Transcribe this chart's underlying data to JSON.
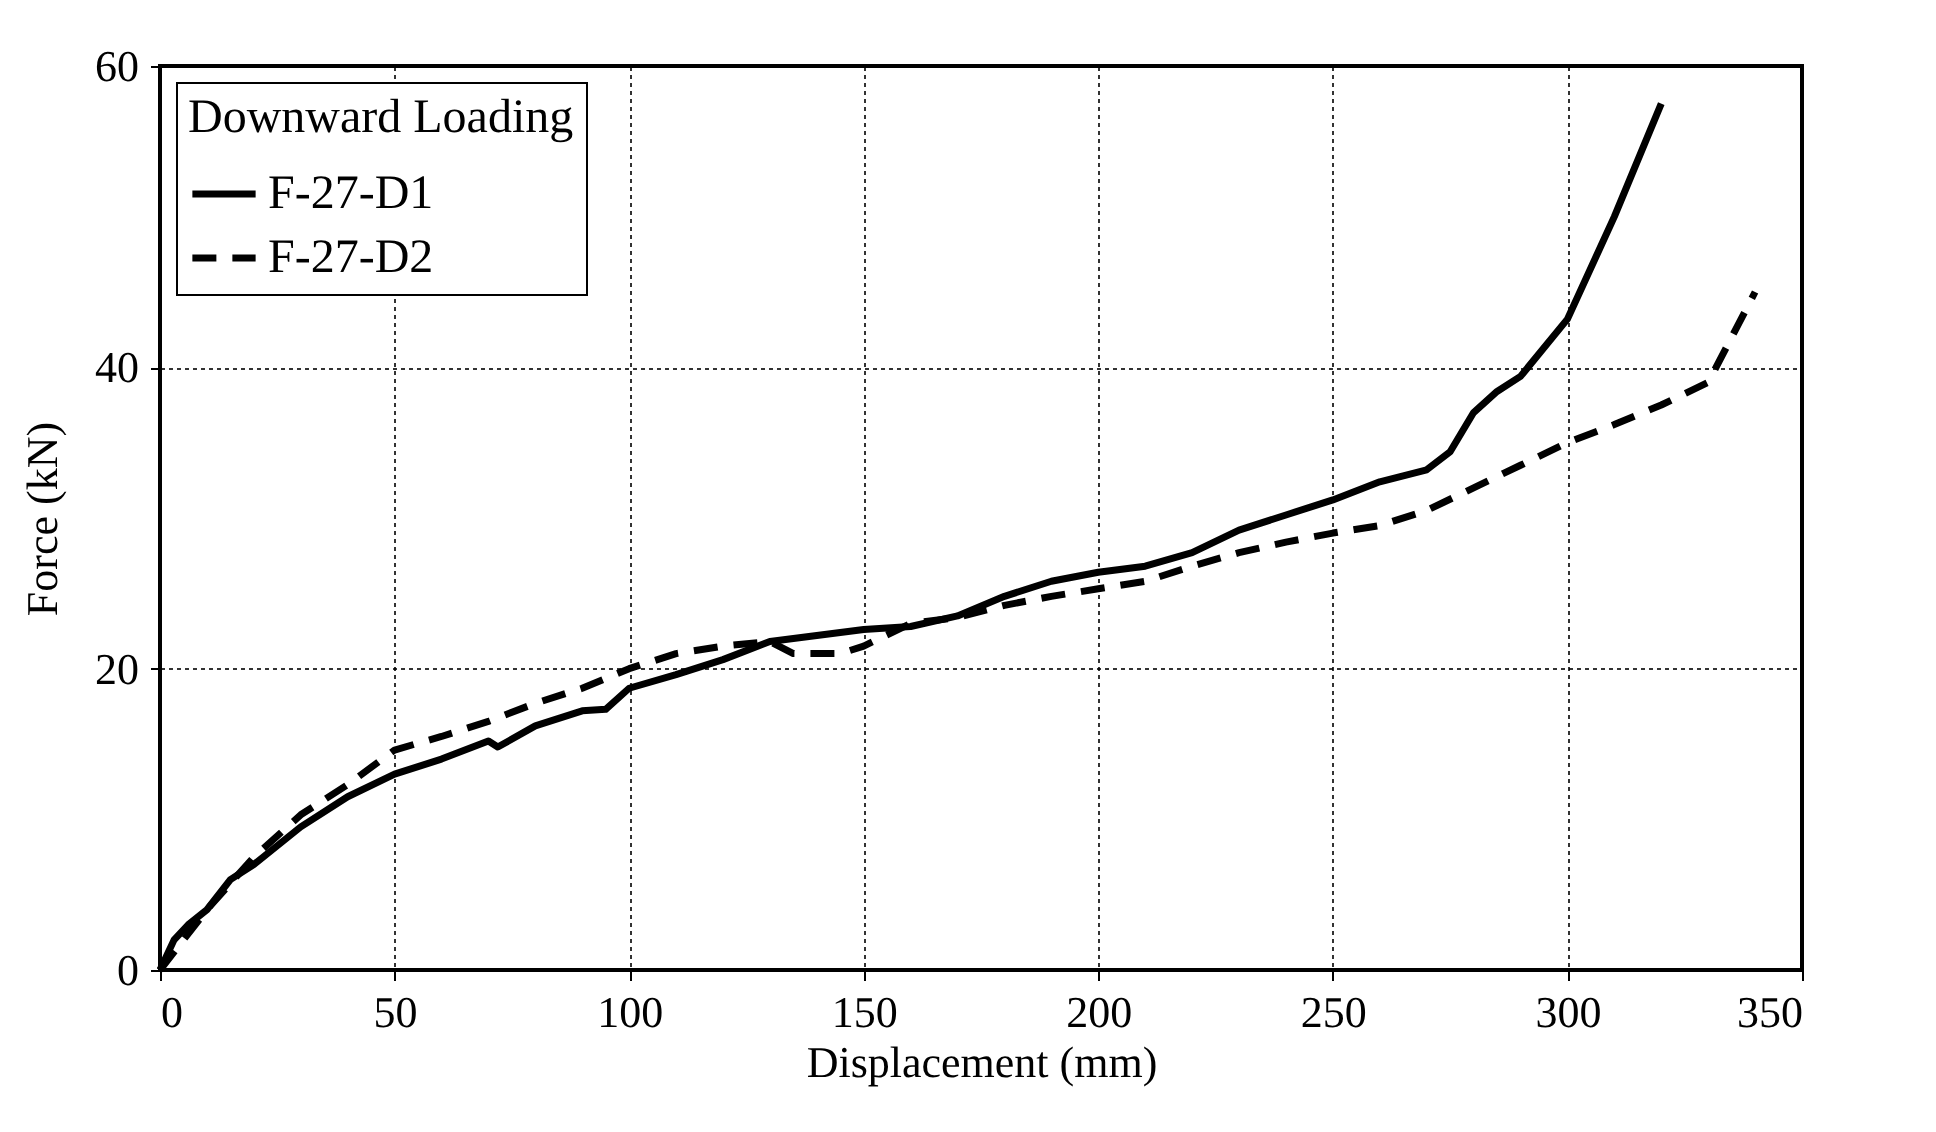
{
  "chart_data": {
    "type": "line",
    "xlabel": "Displacement (mm)",
    "ylabel": "Force (kN)",
    "legend_title": "Downward Loading",
    "legend": "top left",
    "grid": true,
    "xlim": [
      0,
      350
    ],
    "xticks": [
      0,
      50,
      100,
      150,
      200,
      250,
      300,
      350
    ],
    "ylim": [
      0,
      60
    ],
    "yticks": [
      0,
      20,
      40,
      60
    ],
    "series": [
      {
        "name": "F-27-D1",
        "color": "#000000",
        "line_style": "solid",
        "x": [
          0,
          3,
          6,
          10,
          15,
          20,
          30,
          40,
          50,
          60,
          70,
          72,
          80,
          90,
          95,
          100,
          110,
          120,
          130,
          140,
          150,
          160,
          170,
          180,
          190,
          200,
          210,
          220,
          230,
          240,
          250,
          260,
          270,
          275,
          280,
          285,
          290,
          300,
          310,
          320
        ],
        "values": [
          0,
          2,
          3,
          4,
          6,
          7,
          9.5,
          11.5,
          13,
          14,
          15.2,
          14.8,
          16.2,
          17.2,
          17.3,
          18.7,
          19.6,
          20.6,
          21.8,
          22.2,
          22.6,
          22.8,
          23.5,
          24.8,
          25.8,
          26.4,
          26.8,
          27.7,
          29.2,
          30.2,
          31.2,
          32.4,
          33.2,
          34.4,
          37,
          38.4,
          39.4,
          43.2,
          50,
          57.5
        ]
      },
      {
        "name": "F-27-D2",
        "color": "#000000",
        "line_style": "dashed",
        "x": [
          0,
          10,
          20,
          30,
          40,
          50,
          60,
          70,
          80,
          90,
          100,
          110,
          120,
          130,
          135,
          145,
          150,
          160,
          170,
          180,
          190,
          200,
          210,
          220,
          230,
          240,
          250,
          260,
          270,
          280,
          290,
          300,
          310,
          320,
          330,
          340
        ],
        "values": [
          0,
          4,
          7.5,
          10.3,
          12.3,
          14.6,
          15.5,
          16.5,
          17.7,
          18.7,
          20,
          21,
          21.5,
          21.8,
          21,
          21,
          21.5,
          23,
          23.4,
          24.2,
          24.8,
          25.3,
          25.8,
          26.8,
          27.7,
          28.4,
          29,
          29.5,
          30.5,
          32,
          33.5,
          35,
          36.2,
          37.5,
          39,
          45
        ]
      }
    ]
  }
}
